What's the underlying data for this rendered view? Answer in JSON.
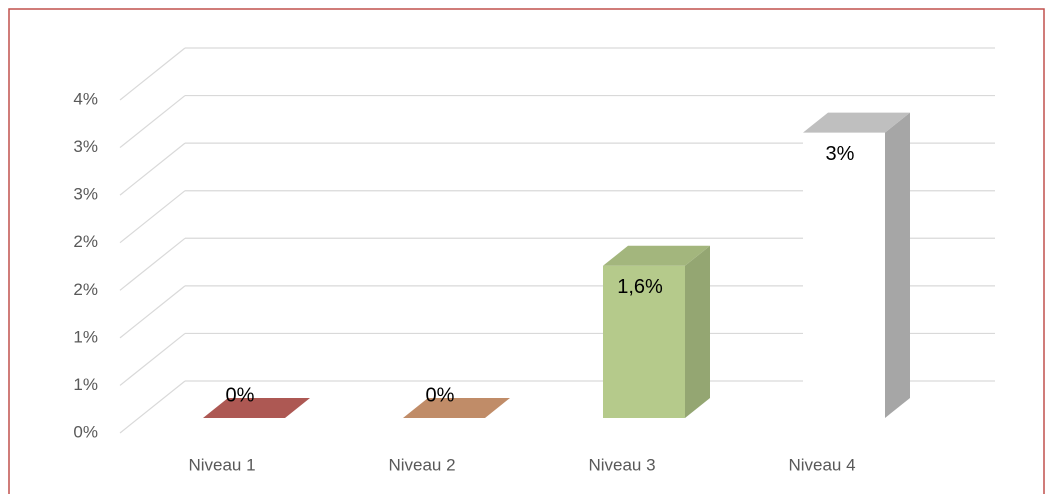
{
  "chart_data": {
    "type": "bar3d",
    "categories": [
      "Niveau 1",
      "Niveau 2",
      "Niveau 3",
      "Niveau 4"
    ],
    "values": [
      0,
      0,
      1.6,
      3
    ],
    "value_labels": [
      "0%",
      "0%",
      "1,6%",
      "3%"
    ],
    "colors": [
      "#c0625c",
      "#d59b74",
      "#b5ca8b",
      "#ffffff"
    ],
    "ylim": [
      0,
      3.5
    ],
    "yticks": [
      {
        "value": 0,
        "label": "0%"
      },
      {
        "value": 0.5,
        "label": "1%"
      },
      {
        "value": 1,
        "label": "1%"
      },
      {
        "value": 1.5,
        "label": "2%"
      },
      {
        "value": 2,
        "label": "2%"
      },
      {
        "value": 2.5,
        "label": "3%"
      },
      {
        "value": 3,
        "label": "3%"
      },
      {
        "value": 3.5,
        "label": "4%"
      }
    ],
    "grid": true
  }
}
